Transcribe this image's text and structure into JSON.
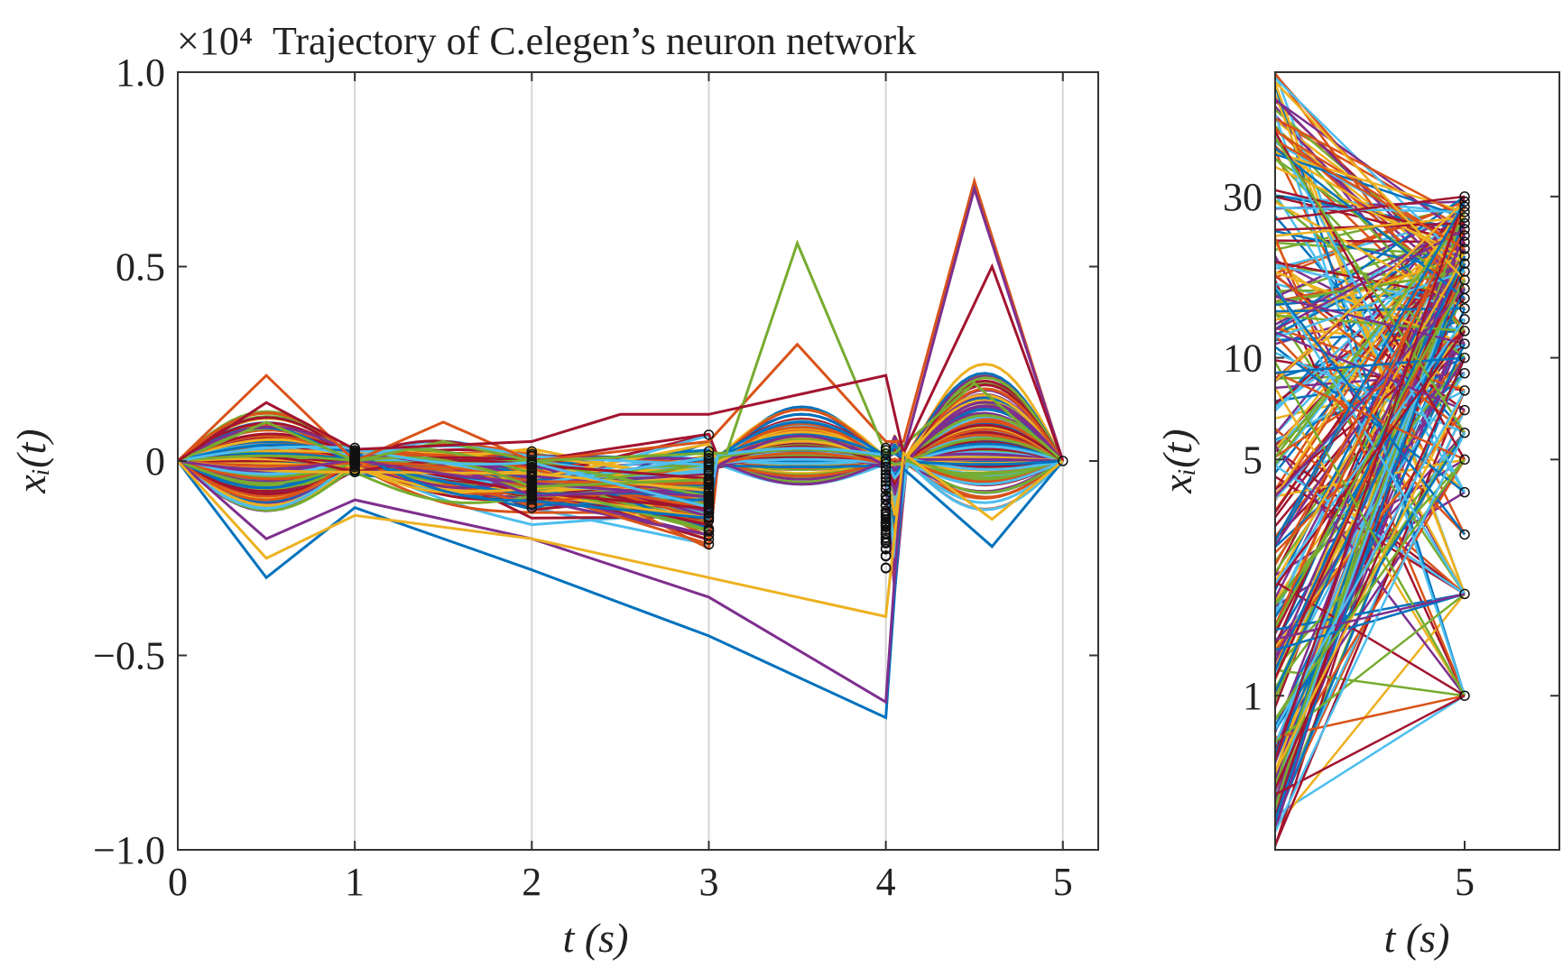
{
  "chart_data": [
    {
      "type": "line",
      "title": "Trajectory of C.elegen’s neuron network",
      "y_scale_factor": "×10⁴",
      "xlabel": "t (s)",
      "ylabel": "xᵢ(t)",
      "xlim": [
        0,
        5.2
      ],
      "ylim": [
        -1.0,
        1.0
      ],
      "x_ticks": [
        0,
        1,
        2,
        3,
        4,
        5
      ],
      "x_tick_labels": [
        "0",
        "1",
        "2",
        "3",
        "4",
        "5"
      ],
      "y_ticks": [
        1.0,
        0.5,
        0,
        -0.5,
        -1.0
      ],
      "y_tick_labels": [
        "1.0",
        "0.5",
        "0",
        "−0.5",
        "−1.0"
      ],
      "x_grid": true,
      "y_grid": false,
      "sample_markers_at": [
        1,
        2,
        3,
        4,
        5
      ],
      "palette": [
        "#0072BD",
        "#D95319",
        "#EDB120",
        "#7E2F8E",
        "#77AC30",
        "#4DBEEE",
        "#A2142F"
      ],
      "series_count_estimate": 279,
      "representative_series": [
        {
          "x": [
            0,
            0.5,
            1,
            1.5,
            2,
            3,
            3.5,
            4,
            4.1,
            4.5,
            5
          ],
          "y": [
            0,
            0.22,
            0,
            0.1,
            0,
            0.05,
            0.3,
            0.05,
            0.05,
            0.72,
            0
          ]
        },
        {
          "x": [
            0,
            0.5,
            1,
            1.5,
            2,
            3,
            3.1,
            3.5,
            4,
            4.05,
            4.5,
            5
          ],
          "y": [
            0,
            0.1,
            0,
            0.05,
            0,
            0.02,
            0.02,
            0.56,
            0.02,
            0.02,
            0.2,
            0
          ]
        },
        {
          "x": [
            0,
            0.5,
            1,
            2,
            3,
            4,
            4.1,
            4.6,
            5
          ],
          "y": [
            0,
            -0.3,
            -0.12,
            -0.28,
            -0.45,
            -0.66,
            -0.02,
            -0.22,
            0
          ]
        },
        {
          "x": [
            0,
            0.5,
            1,
            2,
            3,
            4,
            4.1,
            4.5,
            5
          ],
          "y": [
            0,
            -0.2,
            -0.1,
            -0.2,
            -0.35,
            -0.62,
            0.02,
            0.7,
            0
          ]
        },
        {
          "x": [
            0,
            0.5,
            1,
            2,
            2.5,
            3,
            4,
            4.1,
            4.6,
            5
          ],
          "y": [
            0,
            0.15,
            0.03,
            0.05,
            0.12,
            0.12,
            0.22,
            0.02,
            0.5,
            0
          ]
        },
        {
          "x": [
            0,
            0.5,
            1,
            2,
            3,
            4,
            4.1,
            4.6,
            5
          ],
          "y": [
            0,
            -0.25,
            -0.14,
            -0.2,
            -0.3,
            -0.4,
            0.02,
            -0.15,
            0
          ]
        }
      ]
    },
    {
      "type": "line",
      "title": "",
      "xlabel": "t (s)",
      "ylabel": "xᵢ(t)",
      "xlim": [
        4.0,
        5.5
      ],
      "y_scale": "log",
      "ylim": [
        0.35,
        70
      ],
      "x_ticks": [
        5
      ],
      "x_tick_labels": [
        "5"
      ],
      "y_ticks": [
        1,
        5,
        10,
        30
      ],
      "y_tick_labels": [
        "1",
        "5",
        "10",
        "30"
      ],
      "series_end_values_at_t5": [
        1,
        2,
        3,
        4,
        5,
        6,
        7,
        8,
        9,
        10,
        11,
        12,
        13,
        14,
        15,
        16,
        17,
        18,
        19,
        20,
        21,
        22,
        23,
        24,
        25,
        26,
        27,
        28,
        29,
        30
      ],
      "series_start_range_at_left_edge": [
        0.35,
        70
      ]
    }
  ]
}
